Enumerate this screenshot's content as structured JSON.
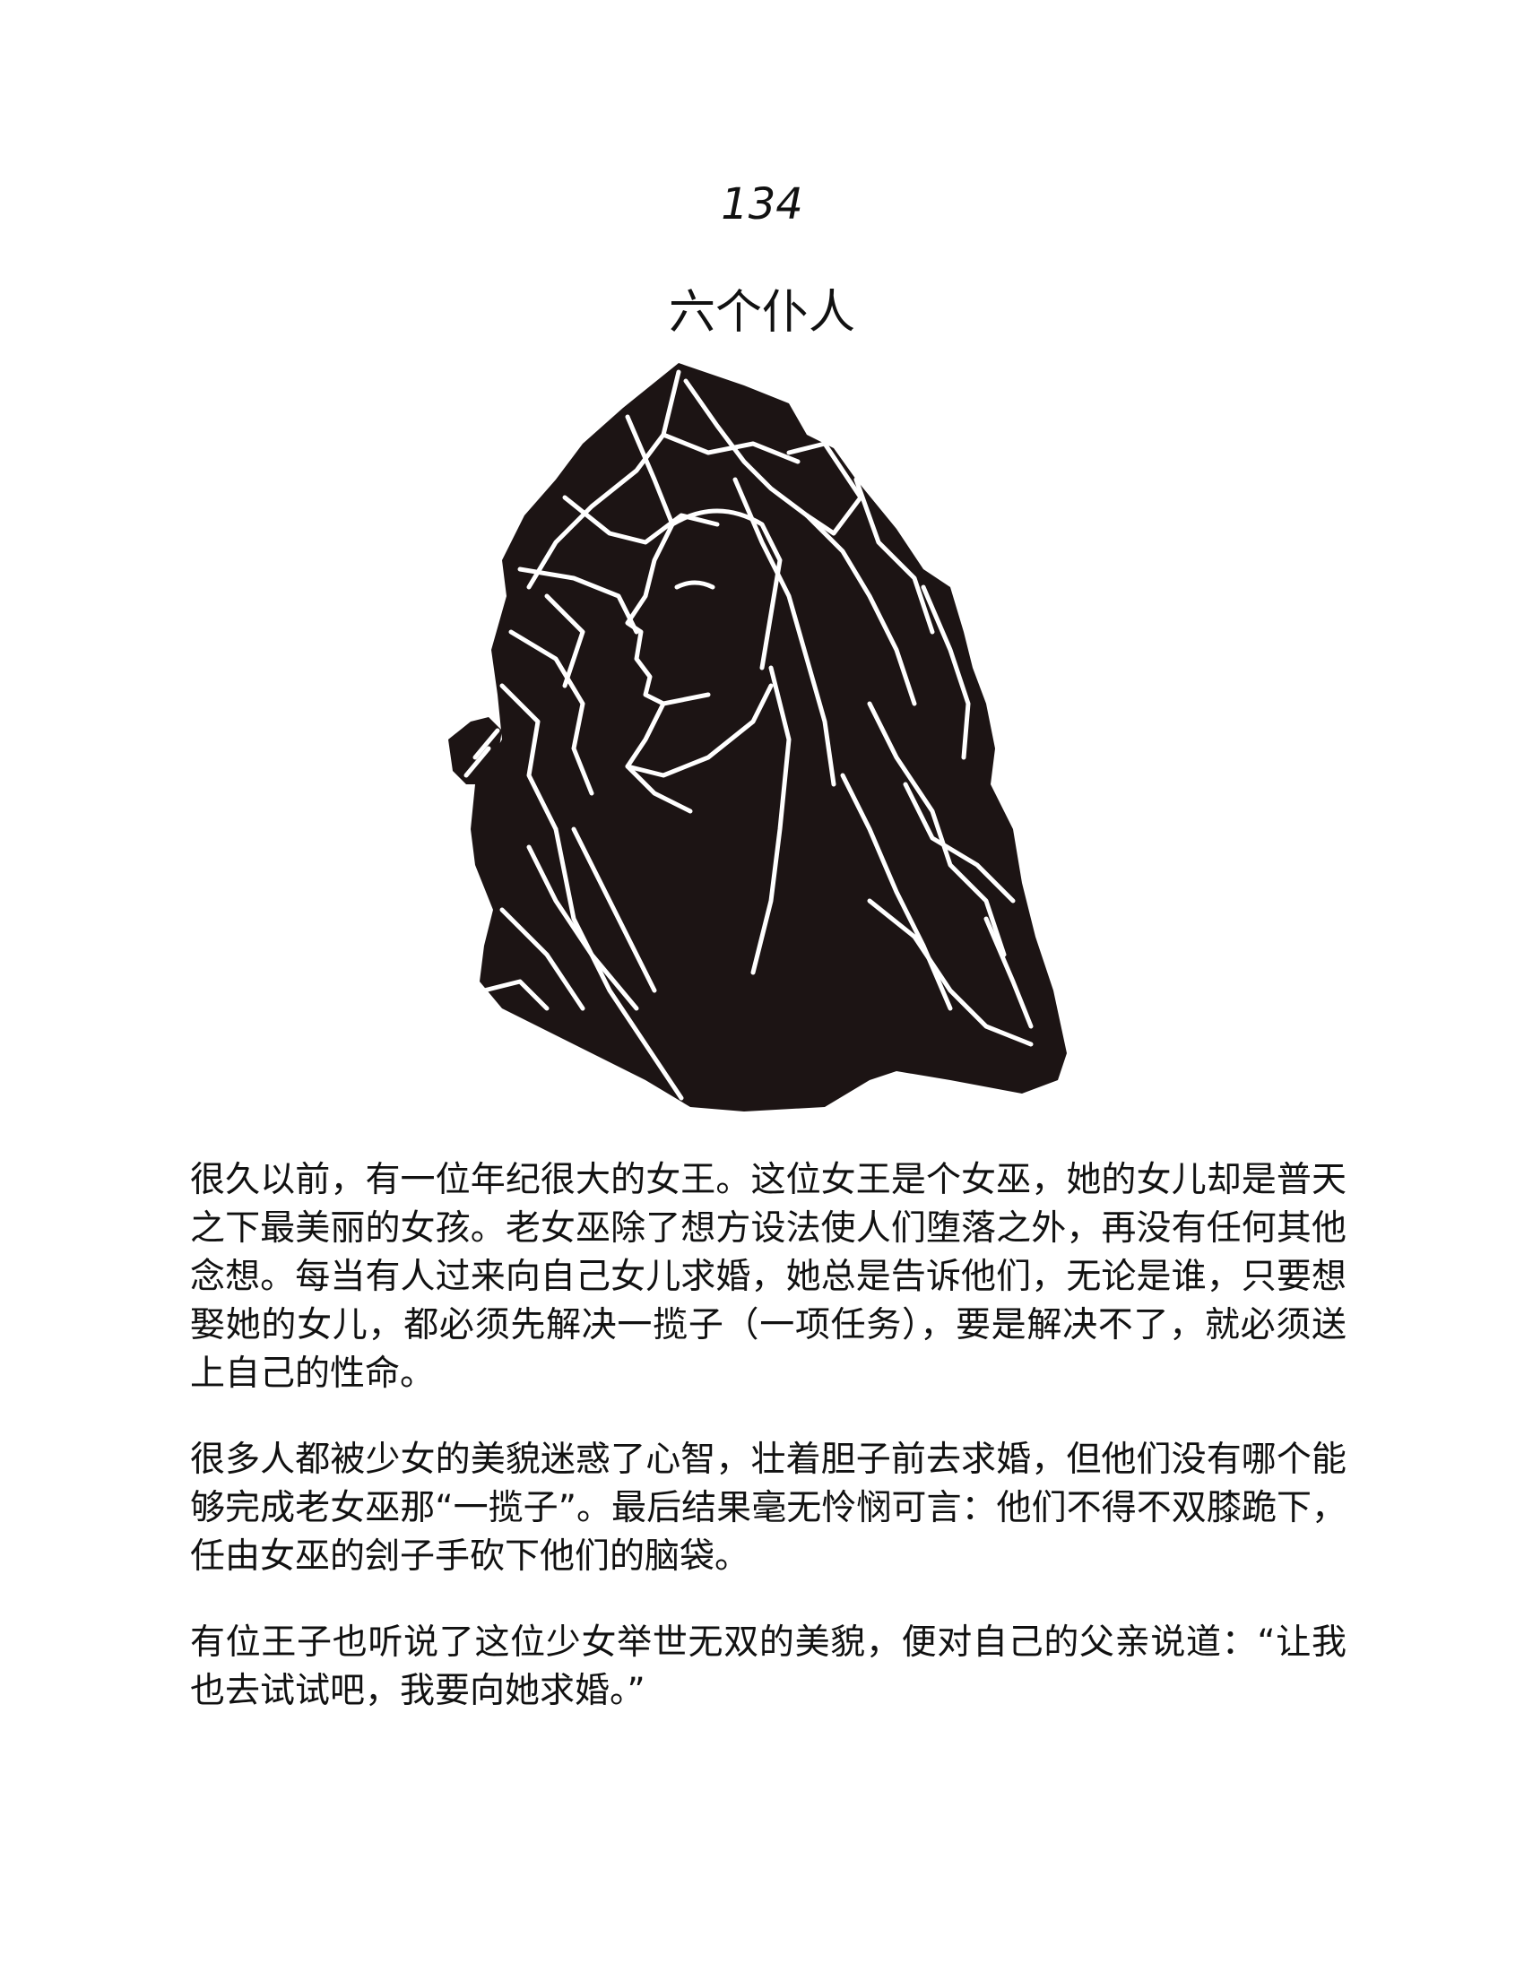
{
  "chapter": {
    "number": "134",
    "title": "六个仆人"
  },
  "illustration": {
    "icon": "woman-with-net-veil-icon",
    "colors": {
      "ink": "#1c1414",
      "line": "#ffffff"
    }
  },
  "paragraphs": [
    "很久以前，有一位年纪很大的女王。这位女王是个女巫，她的女儿却是普天之下最美丽的女孩。老女巫除了想方设法使人们堕落之外，再没有任何其他念想。每当有人过来向自己女儿求婚，她总是告诉他们，无论是谁，只要想娶她的女儿，都必须先解决一揽子（一项任务），要是解决不了，就必须送上自己的性命。",
    "很多人都被少女的美貌迷惑了心智，壮着胆子前去求婚，但他们没有哪个能够完成老女巫那“一揽子”。最后结果毫无怜悯可言：他们不得不双膝跪下，任由女巫的刽子手砍下他们的脑袋。",
    "有位王子也听说了这位少女举世无双的美貌，便对自己的父亲说道：“让我也去试试吧，我要向她求婚。”"
  ]
}
